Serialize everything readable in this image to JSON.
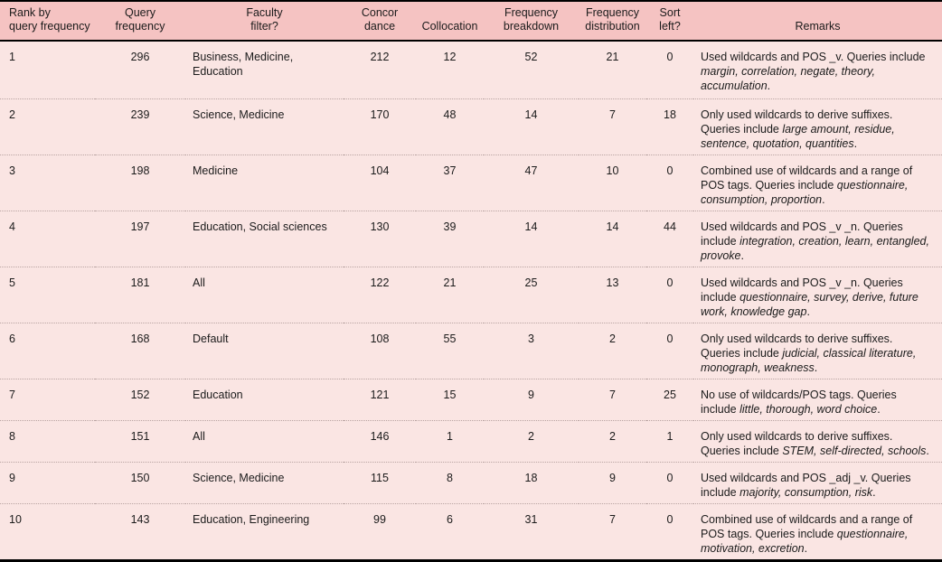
{
  "colors": {
    "header_background": "#f5c3c2",
    "row_background": "#fae5e3",
    "rule_black": "#000000",
    "row_divider_dotted": "#b9a4a2",
    "text": "#1b1b1b"
  },
  "table": {
    "columns": [
      {
        "label": "Rank by\nquery frequency"
      },
      {
        "label": "Query\nfrequency"
      },
      {
        "label": "Faculty\nfilter?"
      },
      {
        "label": "Concor\ndance"
      },
      {
        "label": "Collocation"
      },
      {
        "label": "Frequency\nbreakdown"
      },
      {
        "label": "Frequency\ndistribution"
      },
      {
        "label": "Sort\nleft?"
      },
      {
        "label": "Remarks"
      }
    ],
    "rows": [
      {
        "rank": "1",
        "query_frequency": "296",
        "faculty_filter": "Business, Medicine, Education",
        "concordance": "212",
        "collocation": "12",
        "frequency_breakdown": "52",
        "frequency_distribution": "21",
        "sort_left": "0",
        "remarks": [
          {
            "text": "Used wildcards and POS _v. Queries include "
          },
          {
            "text": "margin, correlation, negate, theory, accumulation",
            "italic": true
          },
          {
            "text": "."
          }
        ]
      },
      {
        "rank": "2",
        "query_frequency": "239",
        "faculty_filter": "Science, Medicine",
        "concordance": "170",
        "collocation": "48",
        "frequency_breakdown": "14",
        "frequency_distribution": "7",
        "sort_left": "18",
        "remarks": [
          {
            "text": "Only used wildcards to derive suffixes. Queries include "
          },
          {
            "text": "large amount, residue, sentence, quotation, quantities",
            "italic": true
          },
          {
            "text": "."
          }
        ]
      },
      {
        "rank": "3",
        "query_frequency": "198",
        "faculty_filter": "Medicine",
        "concordance": "104",
        "collocation": "37",
        "frequency_breakdown": "47",
        "frequency_distribution": "10",
        "sort_left": "0",
        "remarks": [
          {
            "text": "Combined use of wildcards and a range of POS tags. Queries include "
          },
          {
            "text": "questionnaire, consumption, proportion",
            "italic": true
          },
          {
            "text": "."
          }
        ]
      },
      {
        "rank": "4",
        "query_frequency": "197",
        "faculty_filter": "Education, Social sciences",
        "concordance": "130",
        "collocation": "39",
        "frequency_breakdown": "14",
        "frequency_distribution": "14",
        "sort_left": "44",
        "remarks": [
          {
            "text": "Used wildcards and POS _v _n. Queries include "
          },
          {
            "text": "integration, creation, learn, entangled, provoke",
            "italic": true
          },
          {
            "text": "."
          }
        ]
      },
      {
        "rank": "5",
        "query_frequency": "181",
        "faculty_filter": "All",
        "concordance": "122",
        "collocation": "21",
        "frequency_breakdown": "25",
        "frequency_distribution": "13",
        "sort_left": "0",
        "remarks": [
          {
            "text": "Used wildcards and POS _v _n. Queries include "
          },
          {
            "text": "questionnaire, survey, derive, future work, knowledge gap",
            "italic": true
          },
          {
            "text": "."
          }
        ]
      },
      {
        "rank": "6",
        "query_frequency": "168",
        "faculty_filter": "Default",
        "concordance": "108",
        "collocation": "55",
        "frequency_breakdown": "3",
        "frequency_distribution": "2",
        "sort_left": "0",
        "remarks": [
          {
            "text": "Only used wildcards to derive suffixes. Queries include "
          },
          {
            "text": "judicial, classical literature, monograph, weakness",
            "italic": true
          },
          {
            "text": "."
          }
        ]
      },
      {
        "rank": "7",
        "query_frequency": "152",
        "faculty_filter": "Education",
        "concordance": "121",
        "collocation": "15",
        "frequency_breakdown": "9",
        "frequency_distribution": "7",
        "sort_left": "25",
        "remarks": [
          {
            "text": "No use of wildcards/POS tags. Queries include "
          },
          {
            "text": "little, thorough, word choice",
            "italic": true
          },
          {
            "text": "."
          }
        ]
      },
      {
        "rank": "8",
        "query_frequency": "151",
        "faculty_filter": "All",
        "concordance": "146",
        "collocation": "1",
        "frequency_breakdown": "2",
        "frequency_distribution": "2",
        "sort_left": "1",
        "remarks": [
          {
            "text": "Only used wildcards to derive suffixes. Queries include "
          },
          {
            "text": "STEM, self-directed, schools",
            "italic": true
          },
          {
            "text": "."
          }
        ]
      },
      {
        "rank": "9",
        "query_frequency": "150",
        "faculty_filter": "Science, Medicine",
        "concordance": "115",
        "collocation": "8",
        "frequency_breakdown": "18",
        "frequency_distribution": "9",
        "sort_left": "0",
        "remarks": [
          {
            "text": "Used wildcards and POS _adj _v. Queries include "
          },
          {
            "text": "majority, consumption, risk",
            "italic": true
          },
          {
            "text": "."
          }
        ]
      },
      {
        "rank": "10",
        "query_frequency": "143",
        "faculty_filter": "Education, Engineering",
        "concordance": "99",
        "collocation": "6",
        "frequency_breakdown": "31",
        "frequency_distribution": "7",
        "sort_left": "0",
        "remarks": [
          {
            "text": "Combined use of wildcards and a range of POS tags. Queries include "
          },
          {
            "text": "questionnaire, motivation, excretion",
            "italic": true
          },
          {
            "text": "."
          }
        ]
      }
    ]
  }
}
